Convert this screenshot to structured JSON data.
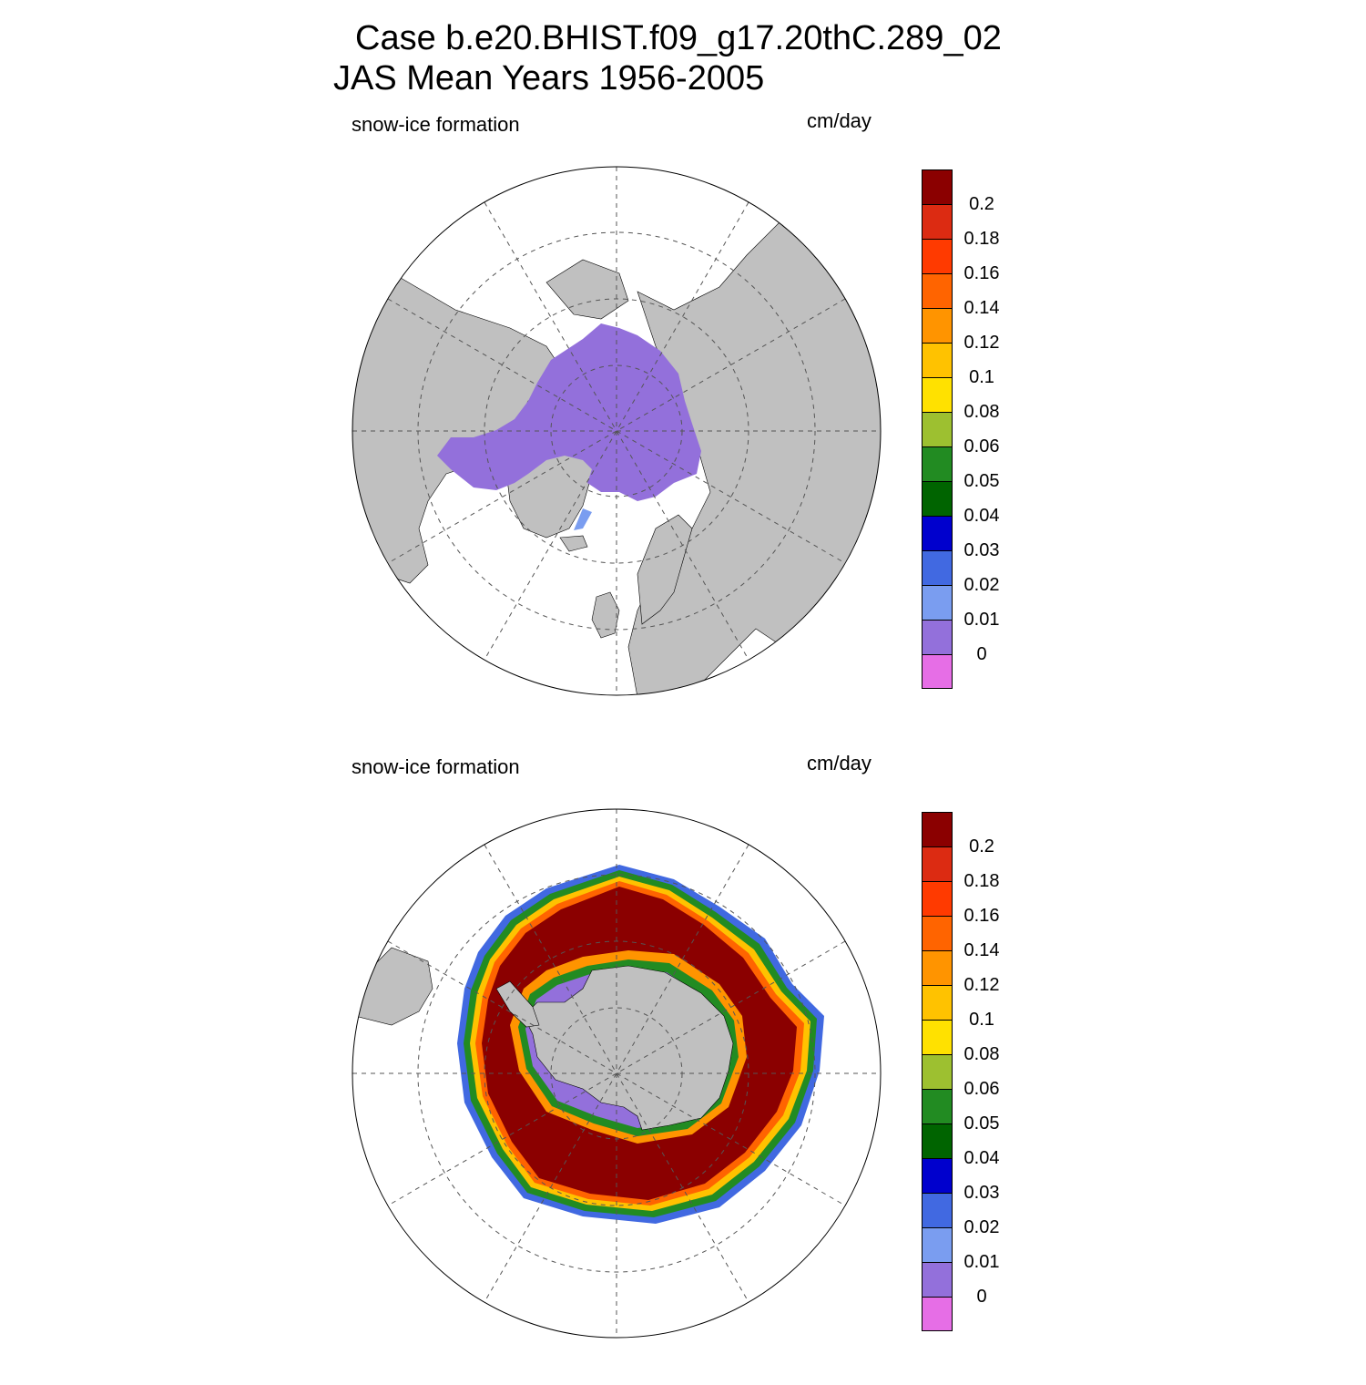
{
  "title": {
    "line1": "Case b.e20.BHIST.f09_g17.20thC.289_02",
    "line2": "JAS Mean   Years 1956-2005"
  },
  "panels": [
    {
      "id": "north",
      "hemisphere": "Northern",
      "left_label": "snow-ice formation",
      "right_label": "cm/day",
      "data_summary": "nearly all Arctic ice at 0-0.01 cm/day (lavender); small 0.01-0.02 patch near Greenland east coast"
    },
    {
      "id": "south",
      "hemisphere": "Southern",
      "left_label": "snow-ice formation",
      "right_label": "cm/day",
      "data_summary": "broad ring of >0.2 cm/day around Antarctica, grading through lower values at pack-ice edges; 0-0.01 in Weddell and Ross coastal areas"
    }
  ],
  "colorbar": {
    "labels": [
      "0.2",
      "0.18",
      "0.16",
      "0.14",
      "0.12",
      "0.1",
      "0.08",
      "0.06",
      "0.05",
      "0.04",
      "0.03",
      "0.02",
      "0.01",
      "0"
    ],
    "colors_top_to_bottom": [
      "#8b0000",
      "#dc2b12",
      "#ff3a00",
      "#ff6400",
      "#ff9400",
      "#ffc200",
      "#ffe100",
      "#9dc030",
      "#228b22",
      "#006400",
      "#0000cd",
      "#4169e1",
      "#7a9df0",
      "#9370db",
      "#e66ee6"
    ]
  },
  "colors": {
    "land": "#c0c0c0",
    "ocean": "#ffffff",
    "ice_low": "#9370db"
  }
}
